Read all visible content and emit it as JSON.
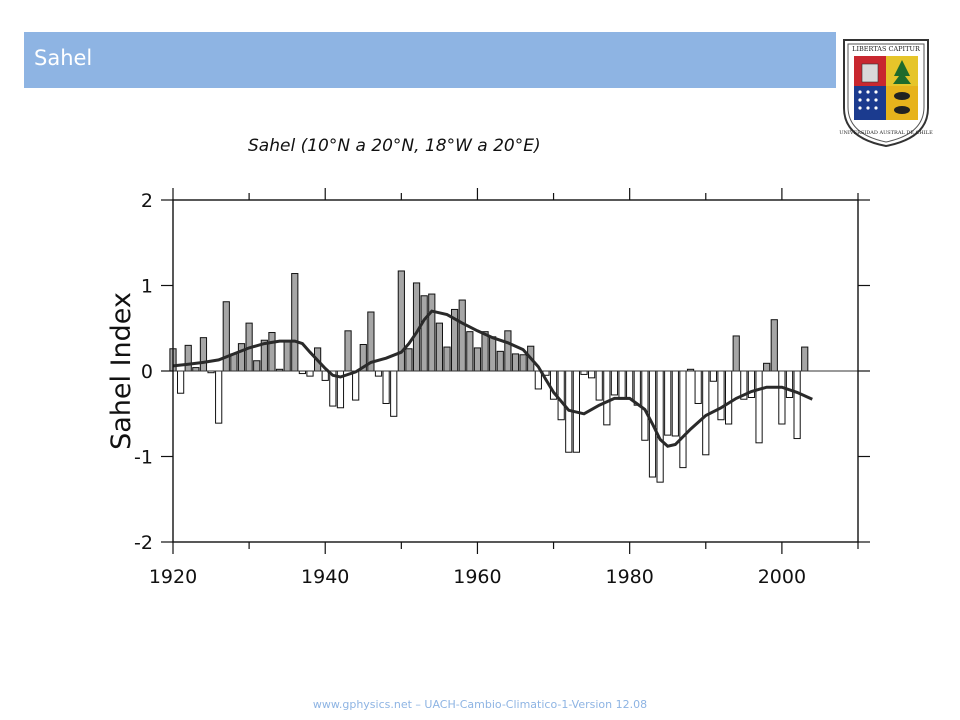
{
  "header": {
    "title": "Sahel"
  },
  "logo": {
    "motto": "LIBERTAS CAPITUR",
    "university": "UNIVERSIDAD AUSTRAL DE CHILE"
  },
  "footer": {
    "text": "www.gphysics.net – UACH-Cambio-Climatico-1-Version 12.08"
  },
  "colors": {
    "header_bg": "#8eb4e3",
    "bar_positive": "#a6a6a6",
    "bar_negative": "#ffffff",
    "curve": "#2a2a2a"
  },
  "chart_data": {
    "type": "bar",
    "title": "Sahel (10°N a 20°N, 18°W a 20°E)",
    "xlabel": "",
    "ylabel": "Sahel Index",
    "xlim": [
      1920,
      2010
    ],
    "ylim": [
      -2,
      2
    ],
    "x_ticks": [
      1920,
      1940,
      1960,
      1980,
      2000
    ],
    "y_ticks": [
      -2,
      -1,
      0,
      1,
      2
    ],
    "y_tick_labels": [
      "-2",
      "-1",
      "0",
      "1",
      "2"
    ],
    "grid": false,
    "years": [
      1920,
      1921,
      1922,
      1923,
      1924,
      1925,
      1926,
      1927,
      1928,
      1929,
      1930,
      1931,
      1932,
      1933,
      1934,
      1935,
      1936,
      1937,
      1938,
      1939,
      1940,
      1941,
      1942,
      1943,
      1944,
      1945,
      1946,
      1947,
      1948,
      1949,
      1950,
      1951,
      1952,
      1953,
      1954,
      1955,
      1956,
      1957,
      1958,
      1959,
      1960,
      1961,
      1962,
      1963,
      1964,
      1965,
      1966,
      1967,
      1968,
      1969,
      1970,
      1971,
      1972,
      1973,
      1974,
      1975,
      1976,
      1977,
      1978,
      1979,
      1980,
      1981,
      1982,
      1983,
      1984,
      1985,
      1986,
      1987,
      1988,
      1989,
      1990,
      1991,
      1992,
      1993,
      1994,
      1995,
      1996,
      1997,
      1998,
      1999,
      2000,
      2001,
      2002,
      2003
    ],
    "values": [
      0.26,
      -0.26,
      0.3,
      0.04,
      0.39,
      -0.02,
      -0.61,
      0.81,
      0.2,
      0.32,
      0.56,
      0.12,
      0.36,
      0.45,
      0.02,
      0.35,
      1.14,
      -0.03,
      -0.06,
      0.27,
      -0.11,
      -0.41,
      -0.43,
      0.47,
      -0.34,
      0.31,
      0.69,
      -0.06,
      -0.38,
      -0.53,
      1.17,
      0.26,
      1.03,
      0.88,
      0.9,
      0.56,
      0.28,
      0.72,
      0.83,
      0.46,
      0.27,
      0.46,
      0.4,
      0.23,
      0.47,
      0.2,
      0.19,
      0.29,
      -0.21,
      -0.05,
      -0.33,
      -0.57,
      -0.95,
      -0.95,
      -0.04,
      -0.08,
      -0.34,
      -0.63,
      -0.28,
      -0.33,
      -0.33,
      -0.4,
      -0.81,
      -1.24,
      -1.3,
      -0.75,
      -0.76,
      -1.13,
      0.02,
      -0.38,
      -0.98,
      -0.12,
      -0.57,
      -0.62,
      0.41,
      -0.33,
      -0.31,
      -0.84,
      0.09,
      0.6,
      -0.62,
      -0.31,
      -0.79,
      0.28
    ],
    "smooth": {
      "x": [
        1920,
        1922,
        1924,
        1926,
        1928,
        1930,
        1932,
        1934,
        1936,
        1937,
        1938,
        1940,
        1941,
        1942,
        1944,
        1946,
        1948,
        1950,
        1951,
        1952,
        1953,
        1954,
        1956,
        1958,
        1960,
        1962,
        1964,
        1966,
        1968,
        1969,
        1970,
        1972,
        1974,
        1976,
        1978,
        1980,
        1982,
        1983,
        1984,
        1985,
        1986,
        1988,
        1990,
        1992,
        1994,
        1996,
        1998,
        2000,
        2002,
        2004
      ],
      "y": [
        0.06,
        0.08,
        0.1,
        0.13,
        0.2,
        0.27,
        0.32,
        0.35,
        0.35,
        0.32,
        0.22,
        0.03,
        -0.05,
        -0.07,
        -0.01,
        0.1,
        0.15,
        0.22,
        0.32,
        0.45,
        0.6,
        0.7,
        0.66,
        0.56,
        0.47,
        0.39,
        0.33,
        0.25,
        0.05,
        -0.1,
        -0.25,
        -0.46,
        -0.5,
        -0.4,
        -0.32,
        -0.32,
        -0.45,
        -0.62,
        -0.8,
        -0.88,
        -0.86,
        -0.68,
        -0.52,
        -0.43,
        -0.32,
        -0.24,
        -0.19,
        -0.19,
        -0.25,
        -0.33
      ]
    }
  }
}
